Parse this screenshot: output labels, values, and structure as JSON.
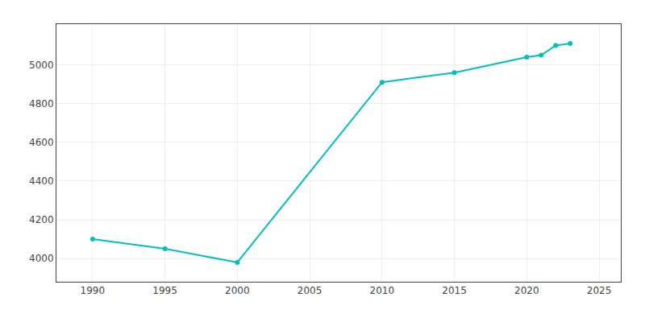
{
  "chart_data": {
    "type": "line",
    "x": [
      1990,
      1995,
      2000,
      2010,
      2015,
      2020,
      2021,
      2022,
      2023
    ],
    "values": [
      4100,
      4050,
      3980,
      4910,
      4960,
      5040,
      5050,
      5100,
      5110
    ],
    "color": "#00BFBF",
    "marker": "circle",
    "xlim": [
      1987.5,
      2026.5
    ],
    "ylim": [
      3880,
      5210
    ],
    "xticks": [
      1990,
      1995,
      2000,
      2005,
      2010,
      2015,
      2020,
      2025
    ],
    "yticks": [
      4000,
      4200,
      4400,
      4600,
      4800,
      5000
    ],
    "grid": true
  }
}
